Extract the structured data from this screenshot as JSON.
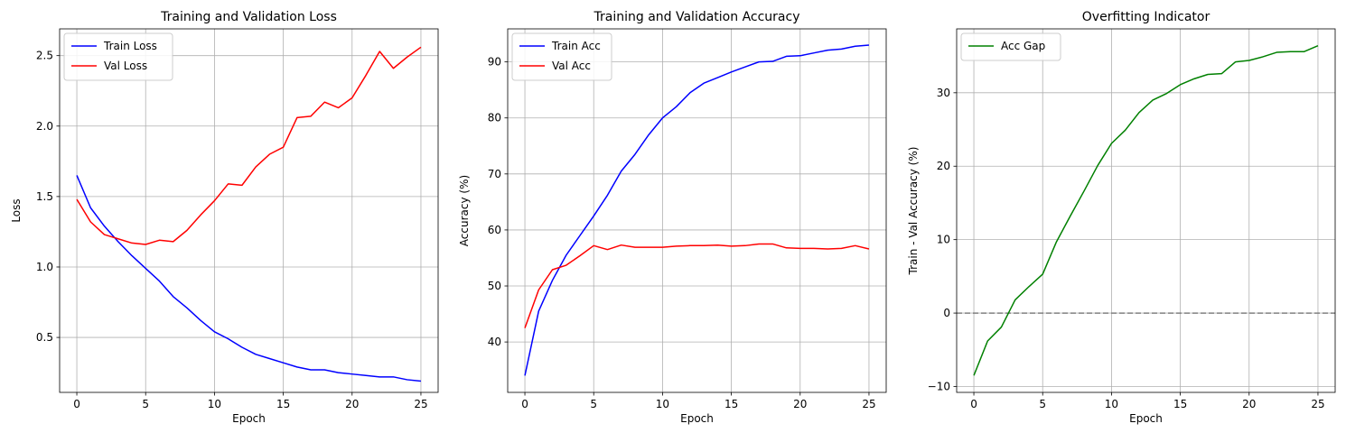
{
  "figure": {
    "background": "#ffffff"
  },
  "chart_data": [
    {
      "type": "line",
      "title": "Training and Validation Loss",
      "xlabel": "Epoch",
      "ylabel": "Loss",
      "xlim": [
        -1.25,
        26.25
      ],
      "ylim": [
        0.11,
        2.69
      ],
      "xticks": [
        0,
        5,
        10,
        15,
        20,
        25
      ],
      "yticks": [
        0.5,
        1.0,
        1.5,
        2.0,
        2.5
      ],
      "ytick_labels": [
        "0.5",
        "1.0",
        "1.5",
        "2.0",
        "2.5"
      ],
      "grid": true,
      "legend": "top-left",
      "x": [
        0,
        1,
        2,
        3,
        4,
        5,
        6,
        7,
        8,
        9,
        10,
        11,
        12,
        13,
        14,
        15,
        16,
        17,
        18,
        19,
        20,
        21,
        22,
        23,
        24,
        25
      ],
      "series": [
        {
          "name": "Train Loss",
          "color": "#0000ff",
          "values": [
            1.65,
            1.42,
            1.29,
            1.18,
            1.08,
            0.99,
            0.9,
            0.79,
            0.71,
            0.62,
            0.54,
            0.49,
            0.43,
            0.38,
            0.35,
            0.32,
            0.29,
            0.27,
            0.27,
            0.25,
            0.24,
            0.23,
            0.22,
            0.22,
            0.2,
            0.19
          ]
        },
        {
          "name": "Val Loss",
          "color": "#ff0000",
          "values": [
            1.48,
            1.32,
            1.23,
            1.2,
            1.17,
            1.16,
            1.19,
            1.18,
            1.26,
            1.37,
            1.47,
            1.59,
            1.58,
            1.71,
            1.8,
            1.85,
            2.06,
            2.07,
            2.17,
            2.13,
            2.2,
            2.36,
            2.53,
            2.41,
            2.49,
            2.56
          ]
        }
      ]
    },
    {
      "type": "line",
      "title": "Training and Validation Accuracy",
      "xlabel": "Epoch",
      "ylabel": "Accuracy (%)",
      "xlim": [
        -1.25,
        26.25
      ],
      "ylim": [
        31.0,
        95.9
      ],
      "xticks": [
        0,
        5,
        10,
        15,
        20,
        25
      ],
      "yticks": [
        40,
        50,
        60,
        70,
        80,
        90
      ],
      "ytick_labels": [
        "40",
        "50",
        "60",
        "70",
        "80",
        "90"
      ],
      "grid": true,
      "legend": "top-left",
      "x": [
        0,
        1,
        2,
        3,
        4,
        5,
        6,
        7,
        8,
        9,
        10,
        11,
        12,
        13,
        14,
        15,
        16,
        17,
        18,
        19,
        20,
        21,
        22,
        23,
        24,
        25
      ],
      "series": [
        {
          "name": "Train Acc",
          "color": "#0000ff",
          "values": [
            34.0,
            45.5,
            51.0,
            55.5,
            59.0,
            62.5,
            66.2,
            70.5,
            73.5,
            77.0,
            80.0,
            82.0,
            84.5,
            86.2,
            87.2,
            88.2,
            89.1,
            90.0,
            90.1,
            91.0,
            91.1,
            91.6,
            92.1,
            92.3,
            92.8,
            93.0
          ]
        },
        {
          "name": "Val Acc",
          "color": "#ff0000",
          "values": [
            42.5,
            49.3,
            52.9,
            53.7,
            55.4,
            57.2,
            56.5,
            57.3,
            56.9,
            56.9,
            56.9,
            57.1,
            57.2,
            57.2,
            57.3,
            57.1,
            57.2,
            57.5,
            57.5,
            56.8,
            56.7,
            56.7,
            56.6,
            56.7,
            57.2,
            56.6
          ]
        }
      ]
    },
    {
      "type": "line",
      "title": "Overfitting Indicator",
      "xlabel": "Epoch",
      "ylabel": "Train - Val Accuracy (%)",
      "xlim": [
        -1.25,
        26.25
      ],
      "ylim": [
        -10.8,
        38.7
      ],
      "xticks": [
        0,
        5,
        10,
        15,
        20,
        25
      ],
      "yticks": [
        -10,
        0,
        10,
        20,
        30
      ],
      "ytick_labels": [
        "−10",
        "0",
        "10",
        "20",
        "30"
      ],
      "grid": true,
      "legend": "top-left",
      "reference_line": {
        "y": 0,
        "color": "#808080",
        "style": "dashed"
      },
      "x": [
        0,
        1,
        2,
        3,
        4,
        5,
        6,
        7,
        8,
        9,
        10,
        11,
        12,
        13,
        14,
        15,
        16,
        17,
        18,
        19,
        20,
        21,
        22,
        23,
        24,
        25
      ],
      "series": [
        {
          "name": "Acc Gap",
          "color": "#008000",
          "values": [
            -8.5,
            -3.8,
            -1.9,
            1.8,
            3.6,
            5.3,
            9.7,
            13.2,
            16.6,
            20.1,
            23.1,
            24.9,
            27.3,
            29.0,
            29.9,
            31.1,
            31.9,
            32.5,
            32.6,
            34.2,
            34.4,
            34.9,
            35.5,
            35.6,
            35.6,
            36.4
          ]
        }
      ]
    }
  ]
}
